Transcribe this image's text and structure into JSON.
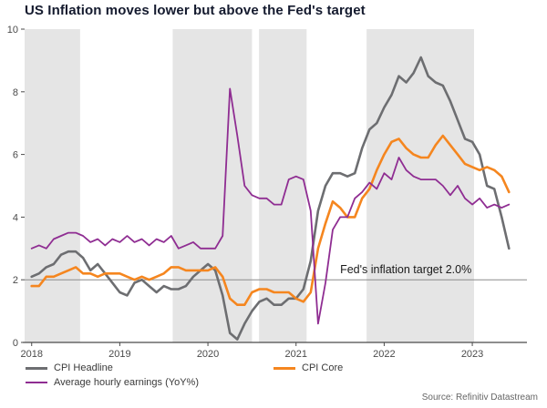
{
  "title": "US Inflation moves lower but above the Fed's target",
  "annotation": "Fed's inflation target 2.0%",
  "source": "Source: Refinitiv Datastream",
  "colors": {
    "headline": "#6d6e71",
    "core": "#f5861f",
    "earnings": "#8f2d92",
    "band": "#e5e5e5",
    "target_line": "#8c8c8c",
    "axis": "#4a4a4a",
    "tick_text": "#4a4a4a",
    "annotation_text": "#1a1a1a"
  },
  "chart_data": {
    "type": "line",
    "title": "US Inflation moves lower but above the Fed's target",
    "x_start": 2018.0,
    "x_step_months": 1,
    "x_domain": [
      2017.92,
      2023.62
    ],
    "ylim": [
      0,
      10
    ],
    "y_ticks": [
      0,
      2,
      4,
      6,
      8,
      10
    ],
    "x_ticks": [
      2018,
      2019,
      2020,
      2021,
      2022,
      2023
    ],
    "target_value": 2.0,
    "annotation_x": 2021.5,
    "grid": false,
    "legend_position": "bottom",
    "shaded_bands": [
      [
        2017.92,
        2018.55
      ],
      [
        2019.6,
        2020.5
      ],
      [
        2020.58,
        2021.12
      ],
      [
        2021.8,
        2023.02
      ]
    ],
    "series": [
      {
        "id": "cpi-headline",
        "name": "CPI Headline",
        "color": "#6d6e71",
        "width": 2.6,
        "values": [
          2.1,
          2.2,
          2.4,
          2.5,
          2.8,
          2.9,
          2.9,
          2.7,
          2.3,
          2.5,
          2.2,
          1.9,
          1.6,
          1.5,
          1.9,
          2.0,
          1.8,
          1.6,
          1.8,
          1.7,
          1.7,
          1.8,
          2.1,
          2.3,
          2.5,
          2.3,
          1.5,
          0.3,
          0.1,
          0.6,
          1.0,
          1.3,
          1.4,
          1.2,
          1.2,
          1.4,
          1.4,
          1.7,
          2.6,
          4.2,
          5.0,
          5.4,
          5.4,
          5.3,
          5.4,
          6.2,
          6.8,
          7.0,
          7.5,
          7.9,
          8.5,
          8.3,
          8.6,
          9.1,
          8.5,
          8.3,
          8.2,
          7.7,
          7.1,
          6.5,
          6.4,
          6.0,
          5.0,
          4.9,
          4.0,
          3.0
        ]
      },
      {
        "id": "cpi-core",
        "name": "CPI Core",
        "color": "#f5861f",
        "width": 2.6,
        "values": [
          1.8,
          1.8,
          2.1,
          2.1,
          2.2,
          2.3,
          2.4,
          2.2,
          2.2,
          2.1,
          2.2,
          2.2,
          2.2,
          2.1,
          2.0,
          2.1,
          2.0,
          2.1,
          2.2,
          2.4,
          2.4,
          2.3,
          2.3,
          2.3,
          2.3,
          2.4,
          2.1,
          1.4,
          1.2,
          1.2,
          1.6,
          1.7,
          1.7,
          1.6,
          1.6,
          1.6,
          1.4,
          1.3,
          1.6,
          3.0,
          3.8,
          4.5,
          4.3,
          4.0,
          4.0,
          4.6,
          4.9,
          5.5,
          6.0,
          6.4,
          6.5,
          6.2,
          6.0,
          5.9,
          5.9,
          6.3,
          6.6,
          6.3,
          6.0,
          5.7,
          5.6,
          5.5,
          5.6,
          5.5,
          5.3,
          4.8
        ]
      },
      {
        "id": "avg-hourly-earnings",
        "name": "Average hourly earnings (YoY%)",
        "color": "#8f2d92",
        "width": 1.8,
        "values": [
          3.0,
          3.1,
          3.0,
          3.3,
          3.4,
          3.5,
          3.5,
          3.4,
          3.2,
          3.3,
          3.1,
          3.3,
          3.2,
          3.4,
          3.2,
          3.3,
          3.1,
          3.3,
          3.2,
          3.4,
          3.0,
          3.1,
          3.2,
          3.0,
          3.0,
          3.0,
          3.4,
          8.1,
          6.6,
          5.0,
          4.7,
          4.6,
          4.6,
          4.4,
          4.4,
          5.2,
          5.3,
          5.2,
          4.2,
          0.6,
          1.9,
          3.6,
          4.0,
          4.0,
          4.6,
          4.8,
          5.1,
          4.9,
          5.4,
          5.2,
          5.9,
          5.5,
          5.3,
          5.2,
          5.2,
          5.2,
          5.0,
          4.7,
          5.0,
          4.6,
          4.4,
          4.6,
          4.3,
          4.4,
          4.3,
          4.4
        ]
      }
    ]
  },
  "legend": {
    "items": [
      {
        "label": "CPI Headline"
      },
      {
        "label": "CPI Core"
      },
      {
        "label": "Average hourly earnings (YoY%)"
      }
    ]
  }
}
